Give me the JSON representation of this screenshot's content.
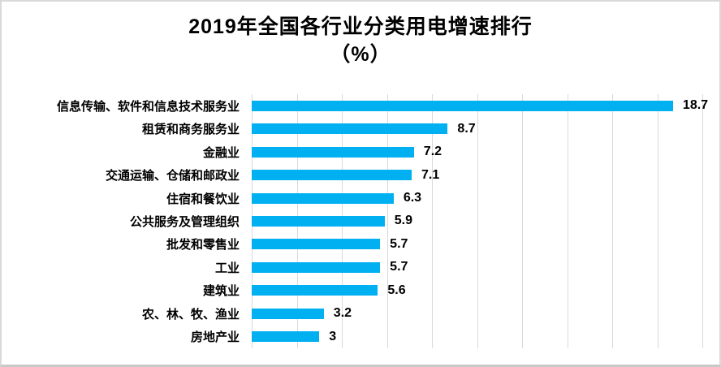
{
  "title": {
    "line1": "2019年全国各行业分类用电增速排行",
    "line2": "（%）"
  },
  "chart_data": {
    "type": "bar",
    "orientation": "horizontal",
    "title": "2019年全国各行业分类用电增速排行（%）",
    "categories": [
      "信息传输、软件和信息技术服务业",
      "租赁和商务服务业",
      "金融业",
      "交通运输、仓储和邮政业",
      "住宿和餐饮业",
      "公共服务及管理组织",
      "批发和零售业",
      "工业",
      "建筑业",
      "农、林、牧、渔业",
      "房地产业"
    ],
    "values": [
      18.7,
      8.7,
      7.2,
      7.1,
      6.3,
      5.9,
      5.7,
      5.7,
      5.6,
      3.2,
      3
    ],
    "value_labels": [
      "18.7",
      "8.7",
      "7.2",
      "7.1",
      "6.3",
      "5.9",
      "5.7",
      "5.7",
      "5.6",
      "3.2",
      "3"
    ],
    "xlabel": "",
    "ylabel": "",
    "xlim": [
      0,
      20
    ],
    "gridline_step": 2,
    "grid": "vertical",
    "legend": "none",
    "bar_color": "#00B0F0",
    "gridline_color": "#D9D9D9",
    "value_label_color": "#000000",
    "category_label_color": "#000000"
  }
}
